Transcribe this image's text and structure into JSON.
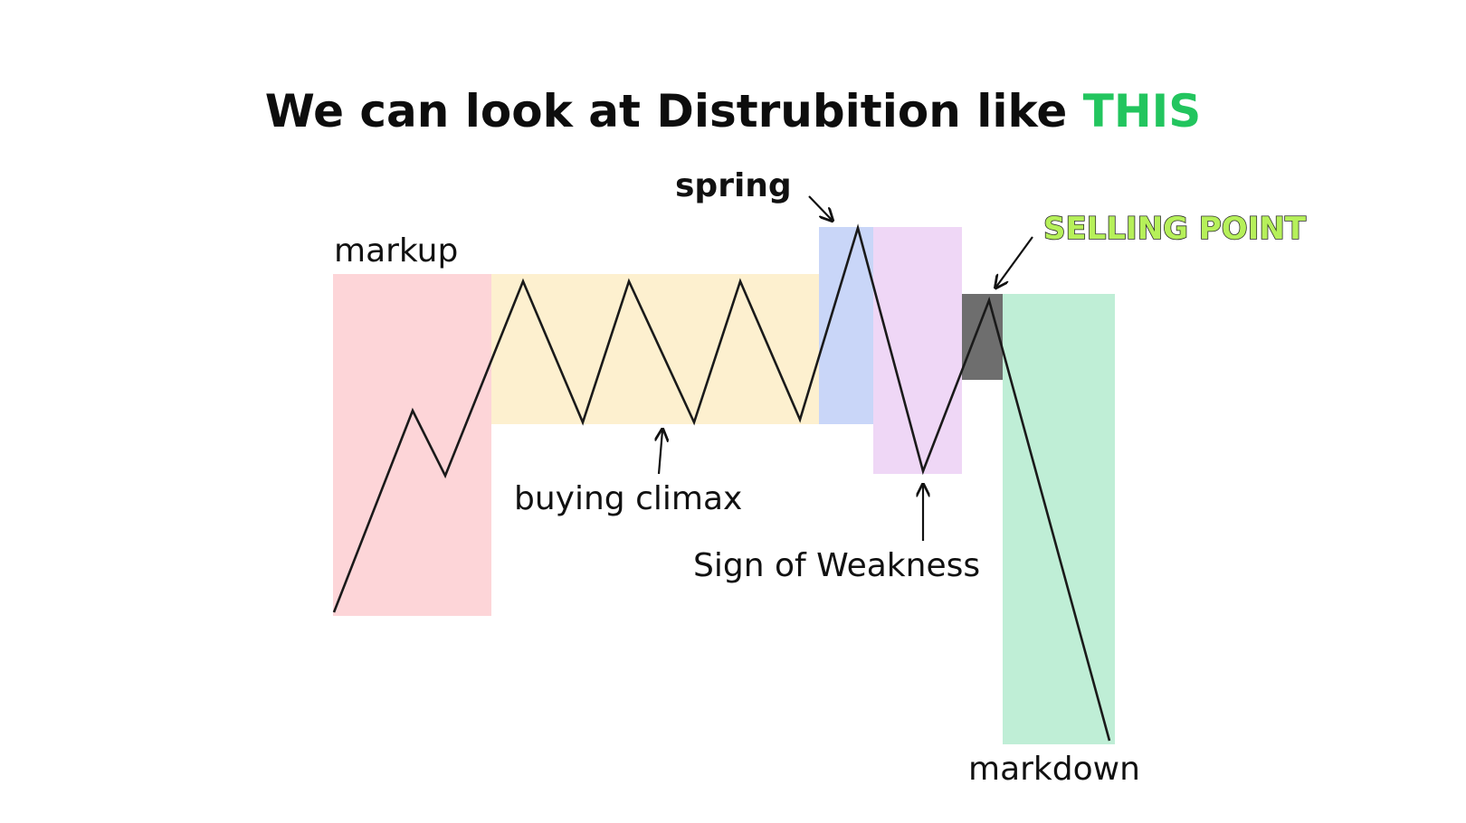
{
  "title": {
    "prefix": "We can look at Distrubition like ",
    "highlight": "THIS",
    "prefix_color": "#0d0d0d",
    "highlight_color": "#22c55e"
  },
  "labels": {
    "markup": "markup",
    "spring": "spring",
    "selling_point": "SELLING POINT",
    "buying_climax": "buying climax",
    "sign_of_weakness": "Sign of Weakness",
    "markdown": "markdown"
  },
  "colors": {
    "markup_zone": "#fdd5d8",
    "range_zone": "#fdf0cf",
    "spring_zone": "#c9d6f8",
    "weakness_zone": "#efd7f6",
    "selling_zone": "#6e6e6e",
    "markdown_zone": "#bfeed6",
    "selling_point_text": "#b6f05a"
  },
  "icons": {
    "pointer": "arrow-icon"
  }
}
